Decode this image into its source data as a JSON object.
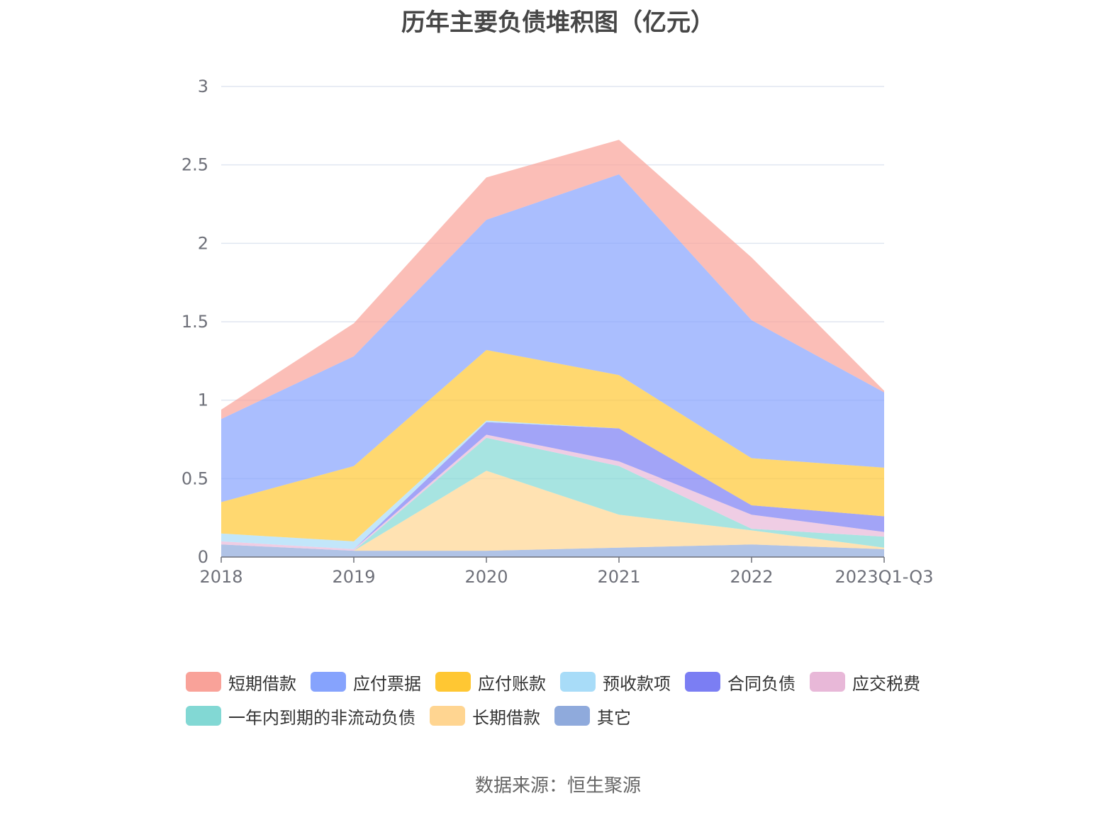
{
  "chart_data": {
    "type": "area",
    "stacked": true,
    "title": "历年主要负债堆积图（亿元）",
    "categories": [
      "2018",
      "2019",
      "2020",
      "2021",
      "2022",
      "2023Q1-Q3"
    ],
    "ylim": [
      0,
      3
    ],
    "yticks": [
      "0",
      "0.5",
      "1",
      "1.5",
      "2",
      "2.5",
      "3"
    ],
    "grid": true,
    "legend_position": "bottom",
    "series": [
      {
        "name": "其它",
        "color": "#8faadc",
        "values": [
          0.08,
          0.04,
          0.04,
          0.06,
          0.08,
          0.05
        ]
      },
      {
        "name": "长期借款",
        "color": "#ffd591",
        "values": [
          0,
          0,
          0.51,
          0.21,
          0.09,
          0.01
        ]
      },
      {
        "name": "一年内到期的非流动负债",
        "color": "#82d8d4",
        "values": [
          0,
          0,
          0.21,
          0.31,
          0.01,
          0.07
        ]
      },
      {
        "name": "应交税费",
        "color": "#e8b8d8",
        "values": [
          0.02,
          0.01,
          0.02,
          0.03,
          0.09,
          0.03
        ]
      },
      {
        "name": "合同负债",
        "color": "#7b7ef3",
        "values": [
          0,
          0,
          0.08,
          0.21,
          0.06,
          0.1
        ]
      },
      {
        "name": "预收款项",
        "color": "#a8dcf8",
        "values": [
          0.05,
          0.05,
          0.01,
          0,
          0,
          0
        ]
      },
      {
        "name": "应付账款",
        "color": "#ffc733",
        "values": [
          0.2,
          0.48,
          0.45,
          0.34,
          0.3,
          0.31
        ]
      },
      {
        "name": "应付票据",
        "color": "#86a3fd",
        "values": [
          0.53,
          0.7,
          0.83,
          1.28,
          0.88,
          0.48
        ]
      },
      {
        "name": "短期借款",
        "color": "#f9a299",
        "values": [
          0.06,
          0.21,
          0.27,
          0.22,
          0.4,
          0.01
        ]
      }
    ]
  },
  "legend": [
    {
      "label": "短期借款",
      "color": "#f9a299"
    },
    {
      "label": "应付票据",
      "color": "#86a3fd"
    },
    {
      "label": "应付账款",
      "color": "#ffc733"
    },
    {
      "label": "预收款项",
      "color": "#a8dcf8"
    },
    {
      "label": "合同负债",
      "color": "#7b7ef3"
    },
    {
      "label": "应交税费",
      "color": "#e8b8d8"
    },
    {
      "label": "一年内到期的非流动负债",
      "color": "#82d8d4"
    },
    {
      "label": "长期借款",
      "color": "#ffd591"
    },
    {
      "label": "其它",
      "color": "#8faadc"
    }
  ],
  "source": "数据来源：恒生聚源"
}
